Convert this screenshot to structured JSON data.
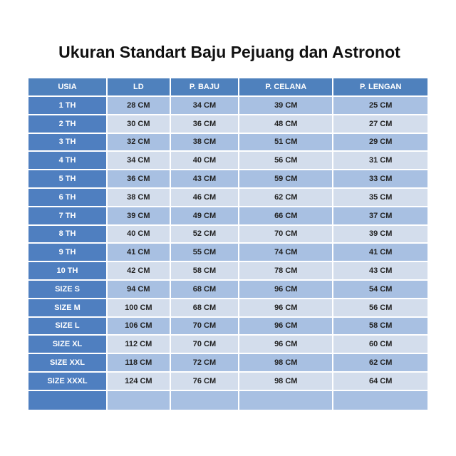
{
  "title": "Ukuran Standart  Baju Pejuang dan Astronot",
  "columns": [
    "USIA",
    "LD",
    "P. BAJU",
    "P. CELANA",
    "P. LENGAN"
  ],
  "rows": [
    [
      "1 TH",
      "28 CM",
      "34 CM",
      "39 CM",
      "25 CM"
    ],
    [
      "2 TH",
      "30 CM",
      "36 CM",
      "48 CM",
      "27 CM"
    ],
    [
      "3 TH",
      "32 CM",
      "38 CM",
      "51 CM",
      "29 CM"
    ],
    [
      "4 TH",
      "34 CM",
      "40 CM",
      "56 CM",
      "31 CM"
    ],
    [
      "5 TH",
      "36 CM",
      "43 CM",
      "59 CM",
      "33 CM"
    ],
    [
      "6 TH",
      "38 CM",
      "46 CM",
      "62 CM",
      "35 CM"
    ],
    [
      "7 TH",
      "39 CM",
      "49 CM",
      "66 CM",
      "37 CM"
    ],
    [
      "8 TH",
      "40 CM",
      "52 CM",
      "70 CM",
      "39 CM"
    ],
    [
      "9 TH",
      "41 CM",
      "55 CM",
      "74 CM",
      "41 CM"
    ],
    [
      "10 TH",
      "42 CM",
      "58 CM",
      "78 CM",
      "43 CM"
    ],
    [
      "SIZE S",
      "94 CM",
      "68 CM",
      "96 CM",
      "54 CM"
    ],
    [
      "SIZE M",
      "100 CM",
      "68 CM",
      "96 CM",
      "56 CM"
    ],
    [
      "SIZE L",
      "106 CM",
      "70 CM",
      "96 CM",
      "58 CM"
    ],
    [
      "SIZE XL",
      "112 CM",
      "70 CM",
      "96 CM",
      "60 CM"
    ],
    [
      "SIZE XXL",
      "118 CM",
      "72 CM",
      "98 CM",
      "62 CM"
    ],
    [
      "SIZE XXXL",
      "124 CM",
      "76 CM",
      "98 CM",
      "64 CM"
    ],
    [
      "",
      "",
      "",
      "",
      ""
    ]
  ]
}
